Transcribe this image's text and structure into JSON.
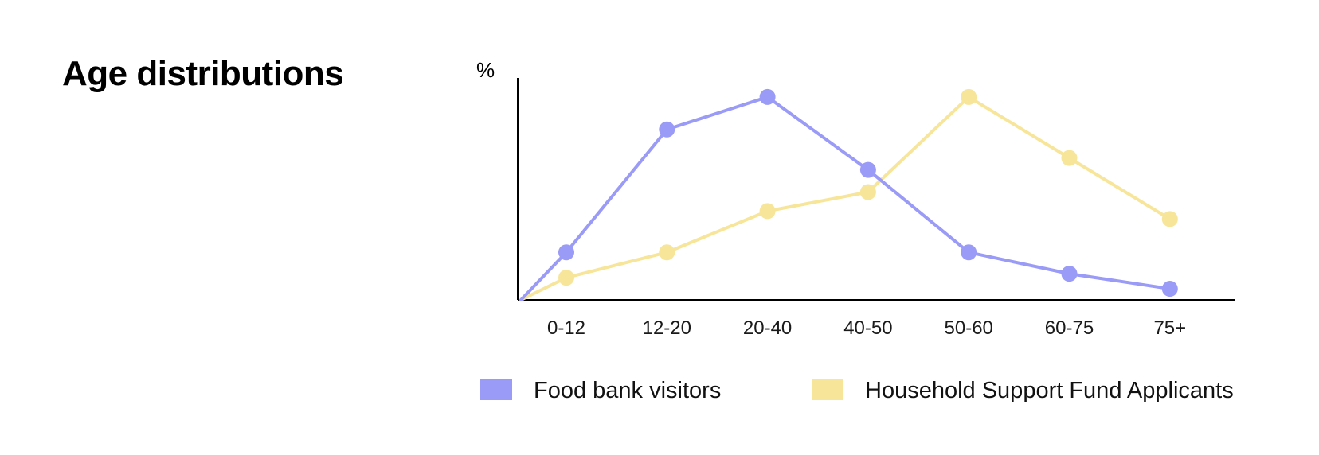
{
  "page": {
    "title": "Age distributions"
  },
  "chart_data": {
    "type": "line",
    "title": "",
    "xlabel": "",
    "ylabel": "%",
    "categories": [
      "0-12",
      "12-20",
      "20-40",
      "40-50",
      "50-60",
      "60-75",
      "75+"
    ],
    "origin_value": 0,
    "ylim": [
      0,
      28
    ],
    "grid": false,
    "y_tick_labels": false,
    "legend_position": "bottom",
    "series": [
      {
        "name": "Food bank visitors",
        "color": "#9a9af7",
        "values": [
          6,
          21.5,
          25.6,
          16.4,
          6,
          3.3,
          1.4
        ]
      },
      {
        "name": "Household Support Fund Applicants",
        "color": "#f7e59a",
        "values": [
          2.8,
          6,
          11.2,
          13.6,
          25.6,
          17.9,
          10.2
        ]
      }
    ]
  }
}
